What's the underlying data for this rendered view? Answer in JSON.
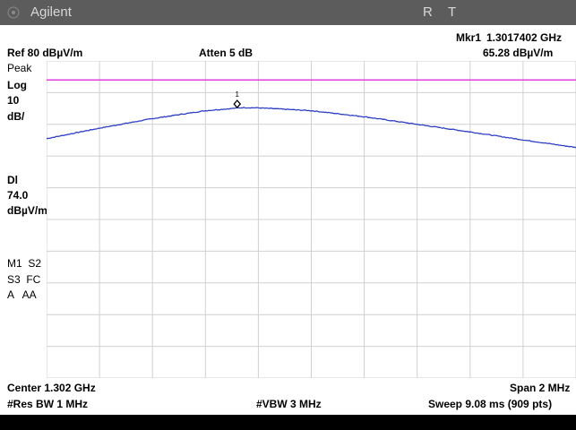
{
  "titlebar": {
    "brand": "Agilent",
    "indicator_r": "R",
    "indicator_t": "T"
  },
  "marker": {
    "label": "Mkr1",
    "frequency": "1.3017402 GHz",
    "amplitude": "65.28 dBµV/m",
    "number": "1"
  },
  "header": {
    "ref_level": "Ref 80 dBµV/m",
    "attenuation": "Atten 5 dB"
  },
  "left_panel": {
    "detector": "Peak",
    "scale_type": "Log",
    "scale_value": "10",
    "scale_unit": "dB/",
    "display_line_label": "Dl",
    "display_line_value": "74.0",
    "display_line_unit": "dBµV/m",
    "trace_line1": "M1  S2",
    "trace_line2": "S3  FC",
    "trace_line3": "A   AA"
  },
  "footer": {
    "center": "Center 1.302 GHz",
    "span": "Span 2 MHz",
    "res_bw": "#Res BW 1 MHz",
    "vbw": "#VBW 3 MHz",
    "sweep": "Sweep 9.08 ms (909 pts)"
  },
  "colors": {
    "trace": "#2e3fc6",
    "display_line": "#e040e0",
    "grid": "#d0d0d0"
  },
  "chart_data": {
    "type": "line",
    "x_unit": "GHz",
    "y_unit": "dBµV/m",
    "xlim": [
      1.301,
      1.303
    ],
    "ylim": [
      -20,
      80
    ],
    "display_line": 74.0,
    "marker": {
      "x": 1.3017402,
      "y": 65.28
    },
    "series": [
      {
        "values_x": [
          1.301,
          1.3012,
          1.3014,
          1.3016,
          1.3017402,
          1.3018,
          1.302,
          1.3022,
          1.3024,
          1.3026,
          1.3028,
          1.303
        ],
        "values_y": [
          55.5,
          58.8,
          61.8,
          64.3,
          65.28,
          65.2,
          64.3,
          62.4,
          60.0,
          57.6,
          55.1,
          52.7
        ]
      }
    ]
  }
}
